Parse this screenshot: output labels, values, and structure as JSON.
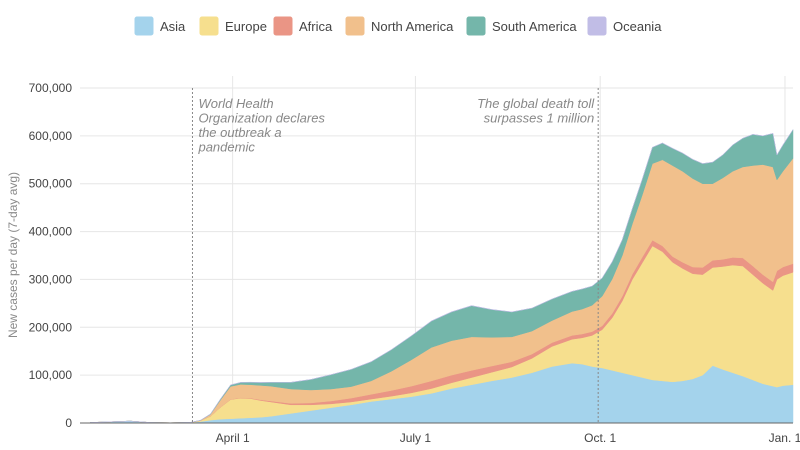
{
  "chart_data": {
    "type": "area",
    "stacked": true,
    "ylabel": "New cases per day (7-day avg)",
    "ylim": [
      0,
      700000
    ],
    "y_ticks": [
      0,
      100000,
      200000,
      300000,
      400000,
      500000,
      600000,
      700000
    ],
    "y_tick_labels": [
      "0",
      "100,000",
      "200,000",
      "300,000",
      "400,000",
      "500,000",
      "600,000",
      "700,000"
    ],
    "x_ticks": [
      {
        "day": 91,
        "label": "April 1"
      },
      {
        "day": 182,
        "label": "July 1"
      },
      {
        "day": 274,
        "label": "Oct. 1"
      },
      {
        "day": 366,
        "label": "Jan. 1"
      }
    ],
    "x_range_days": [
      15,
      370
    ],
    "x": [
      20,
      40,
      50,
      60,
      70,
      75,
      80,
      85,
      90,
      95,
      100,
      105,
      110,
      120,
      130,
      140,
      150,
      160,
      170,
      180,
      190,
      200,
      210,
      220,
      230,
      240,
      250,
      260,
      265,
      270,
      275,
      280,
      285,
      290,
      295,
      300,
      305,
      310,
      315,
      320,
      325,
      330,
      335,
      340,
      345,
      350,
      355,
      360,
      362,
      365,
      370
    ],
    "series": [
      {
        "name": "Asia",
        "color": "#a4d3ec",
        "values": [
          1000,
          4000,
          1000,
          500,
          1000,
          3000,
          6000,
          8000,
          9000,
          10000,
          11000,
          12000,
          14000,
          20000,
          26000,
          32000,
          38000,
          45000,
          50000,
          55000,
          62000,
          72000,
          80000,
          88000,
          95000,
          105000,
          118000,
          125000,
          123000,
          118000,
          115000,
          110000,
          105000,
          100000,
          95000,
          90000,
          88000,
          86000,
          88000,
          92000,
          100000,
          120000,
          112000,
          105000,
          98000,
          90000,
          82000,
          77000,
          75000,
          78000,
          80000
        ]
      },
      {
        "name": "Europe",
        "color": "#f6df8e",
        "values": [
          0,
          0,
          0,
          0,
          200,
          2000,
          8000,
          25000,
          40000,
          42000,
          40000,
          35000,
          30000,
          18000,
          12000,
          8000,
          6000,
          5000,
          6000,
          8000,
          10000,
          12000,
          15000,
          18000,
          22000,
          30000,
          42000,
          50000,
          55000,
          65000,
          80000,
          110000,
          150000,
          200000,
          240000,
          280000,
          270000,
          250000,
          235000,
          220000,
          210000,
          205000,
          215000,
          225000,
          230000,
          220000,
          210000,
          200000,
          225000,
          230000,
          235000
        ]
      },
      {
        "name": "Africa",
        "color": "#ea9585",
        "values": [
          0,
          0,
          0,
          0,
          0,
          0,
          100,
          300,
          500,
          700,
          1000,
          1500,
          2000,
          3000,
          4000,
          6000,
          8000,
          10000,
          12000,
          14000,
          16000,
          16000,
          15000,
          13000,
          11000,
          9000,
          8000,
          8000,
          8000,
          8000,
          8000,
          9000,
          10000,
          11000,
          12000,
          12000,
          12000,
          12000,
          13000,
          14000,
          15000,
          15000,
          15000,
          16000,
          17000,
          18000,
          18000,
          18000,
          18000,
          18000,
          18000
        ]
      },
      {
        "name": "North America",
        "color": "#f1c08c",
        "values": [
          0,
          0,
          0,
          0,
          0,
          500,
          4000,
          15000,
          27000,
          28000,
          28000,
          30000,
          31000,
          30000,
          27000,
          25000,
          24000,
          28000,
          40000,
          55000,
          70000,
          72000,
          70000,
          60000,
          52000,
          48000,
          46000,
          50000,
          52000,
          55000,
          62000,
          72000,
          85000,
          105000,
          130000,
          160000,
          180000,
          190000,
          190000,
          185000,
          175000,
          160000,
          170000,
          180000,
          190000,
          210000,
          230000,
          240000,
          190000,
          200000,
          220000
        ]
      },
      {
        "name": "South America",
        "color": "#74b6aa",
        "values": [
          0,
          0,
          0,
          0,
          0,
          200,
          800,
          2000,
          3000,
          4000,
          5000,
          6000,
          8000,
          14000,
          22000,
          30000,
          36000,
          40000,
          45000,
          50000,
          55000,
          60000,
          65000,
          58000,
          52000,
          48000,
          45000,
          42000,
          42000,
          40000,
          38000,
          36000,
          33000,
          32000,
          33000,
          34000,
          35000,
          36000,
          38000,
          40000,
          42000,
          45000,
          48000,
          55000,
          60000,
          65000,
          60000,
          70000,
          52000,
          55000,
          60000
        ]
      },
      {
        "name": "Oceania",
        "color": "#c1bde6",
        "values": [
          0,
          0,
          0,
          0,
          0,
          0,
          0,
          100,
          200,
          300,
          300,
          200,
          100,
          50,
          50,
          100,
          100,
          150,
          200,
          400,
          500,
          500,
          400,
          300,
          200,
          100,
          100,
          100,
          100,
          100,
          100,
          100,
          100,
          100,
          100,
          100,
          100,
          100,
          100,
          100,
          100,
          100,
          100,
          100,
          100,
          100,
          100,
          100,
          100,
          100,
          100
        ]
      }
    ],
    "annotations": [
      {
        "day": 71,
        "lines": [
          "World Health",
          "Organization declares",
          "the outbreak a",
          "pandemic"
        ],
        "align": "left"
      },
      {
        "day": 273,
        "lines": [
          "The global death toll",
          "surpasses 1 million"
        ],
        "align": "right"
      }
    ],
    "legend_position": "top"
  }
}
